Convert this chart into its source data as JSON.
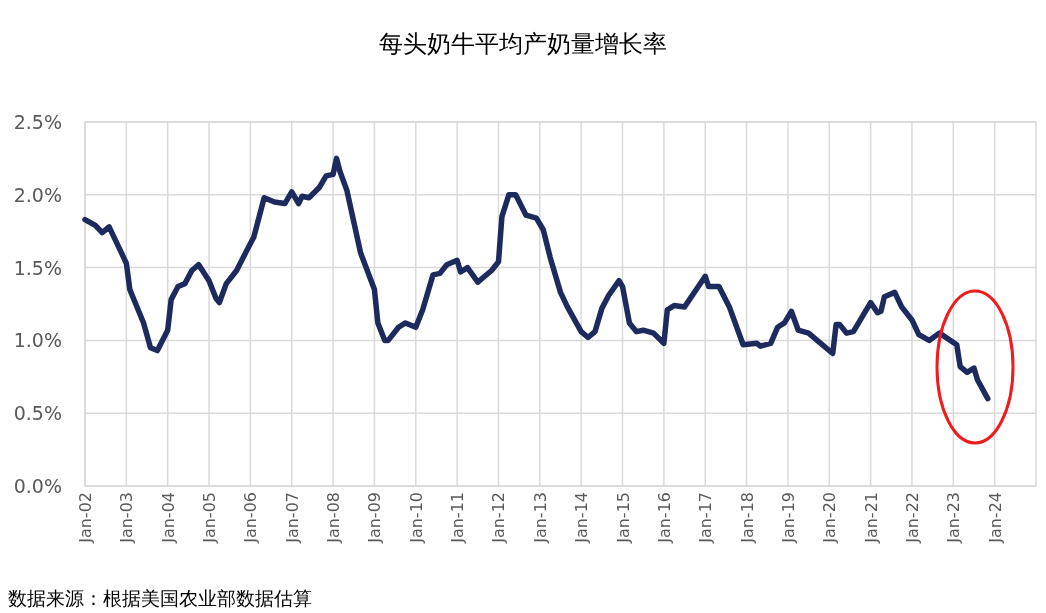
{
  "chart_data": {
    "type": "line",
    "title": "每头奶牛平均产奶量增长率",
    "annotations": [
      "数据来源：根据美国农业部数据估算"
    ],
    "x": [
      "2002-01",
      "2002-04",
      "2002-06",
      "2002-08",
      "2002-10",
      "2003-01",
      "2003-02",
      "2003-06",
      "2003-08",
      "2003-10",
      "2004-01",
      "2004-02",
      "2004-04",
      "2004-06",
      "2004-08",
      "2004-10",
      "2005-01",
      "2005-03",
      "2005-04",
      "2005-06",
      "2005-09",
      "2005-12",
      "2006-02",
      "2006-05",
      "2006-08",
      "2006-11",
      "2007-01",
      "2007-03",
      "2007-04",
      "2007-06",
      "2007-09",
      "2007-11",
      "2008-01",
      "2008-02",
      "2008-03",
      "2008-05",
      "2008-09",
      "2009-01",
      "2009-02",
      "2009-04",
      "2009-05",
      "2009-08",
      "2009-10",
      "2010-01",
      "2010-03",
      "2010-06",
      "2010-08",
      "2010-10",
      "2011-01",
      "2011-02",
      "2011-04",
      "2011-07",
      "2011-11",
      "2012-01",
      "2012-02",
      "2012-04",
      "2012-06",
      "2012-09",
      "2012-12",
      "2013-02",
      "2013-04",
      "2013-07",
      "2013-09",
      "2014-01",
      "2014-03",
      "2014-05",
      "2014-07",
      "2014-09",
      "2014-12",
      "2015-01",
      "2015-03",
      "2015-05",
      "2015-07",
      "2015-10",
      "2016-01",
      "2016-02",
      "2016-04",
      "2016-07",
      "2016-11",
      "2017-01",
      "2017-02",
      "2017-05",
      "2017-08",
      "2017-12",
      "2018-04",
      "2018-05",
      "2018-08",
      "2018-10",
      "2018-12",
      "2019-02",
      "2019-04",
      "2019-07",
      "2019-10",
      "2020-02",
      "2020-03",
      "2020-04",
      "2020-06",
      "2020-08",
      "2021-01",
      "2021-03",
      "2021-04",
      "2021-05",
      "2021-08",
      "2021-10",
      "2022-01",
      "2022-03",
      "2022-06",
      "2022-09",
      "2023-02",
      "2023-03",
      "2023-05",
      "2023-07",
      "2023-08",
      "2023-11"
    ],
    "series": [
      {
        "color": "#1d2a5e",
        "values": [
          1.83,
          1.79,
          1.74,
          1.78,
          1.68,
          1.53,
          1.35,
          1.12,
          0.95,
          0.93,
          1.07,
          1.28,
          1.37,
          1.39,
          1.48,
          1.52,
          1.41,
          1.29,
          1.26,
          1.39,
          1.48,
          1.62,
          1.71,
          1.98,
          1.95,
          1.94,
          2.02,
          1.94,
          1.99,
          1.98,
          2.05,
          2.13,
          2.14,
          2.25,
          2.16,
          2.03,
          1.6,
          1.35,
          1.12,
          1.0,
          1.0,
          1.09,
          1.12,
          1.09,
          1.21,
          1.45,
          1.46,
          1.52,
          1.55,
          1.47,
          1.5,
          1.4,
          1.48,
          1.54,
          1.85,
          2.0,
          2.0,
          1.86,
          1.84,
          1.76,
          1.57,
          1.33,
          1.23,
          1.06,
          1.02,
          1.06,
          1.22,
          1.31,
          1.41,
          1.37,
          1.12,
          1.06,
          1.07,
          1.05,
          0.98,
          1.21,
          1.24,
          1.23,
          1.37,
          1.44,
          1.37,
          1.37,
          1.23,
          0.97,
          0.98,
          0.96,
          0.98,
          1.09,
          1.12,
          1.2,
          1.07,
          1.05,
          0.99,
          0.91,
          1.11,
          1.11,
          1.05,
          1.06,
          1.26,
          1.19,
          1.2,
          1.3,
          1.33,
          1.23,
          1.14,
          1.04,
          1.0,
          1.05,
          0.97,
          0.82,
          0.78,
          0.81,
          0.73,
          0.6
        ]
      }
    ],
    "xlim": [
      "2002-01",
      "2025-01"
    ],
    "xticks": [
      {
        "value": "2002-01",
        "label": "Jan-02"
      },
      {
        "value": "2003-01",
        "label": "Jan-03"
      },
      {
        "value": "2004-01",
        "label": "Jan-04"
      },
      {
        "value": "2005-01",
        "label": "Jan-05"
      },
      {
        "value": "2006-01",
        "label": "Jan-06"
      },
      {
        "value": "2007-01",
        "label": "Jan-07"
      },
      {
        "value": "2008-01",
        "label": "Jan-08"
      },
      {
        "value": "2009-01",
        "label": "Jan-09"
      },
      {
        "value": "2010-01",
        "label": "Jan-10"
      },
      {
        "value": "2011-01",
        "label": "Jan-11"
      },
      {
        "value": "2012-01",
        "label": "Jan-12"
      },
      {
        "value": "2013-01",
        "label": "Jan-13"
      },
      {
        "value": "2014-01",
        "label": "Jan-14"
      },
      {
        "value": "2015-01",
        "label": "Jan-15"
      },
      {
        "value": "2016-01",
        "label": "Jan-16"
      },
      {
        "value": "2017-01",
        "label": "Jan-17"
      },
      {
        "value": "2018-01",
        "label": "Jan-18"
      },
      {
        "value": "2019-01",
        "label": "Jan-19"
      },
      {
        "value": "2020-01",
        "label": "Jan-20"
      },
      {
        "value": "2021-01",
        "label": "Jan-21"
      },
      {
        "value": "2022-01",
        "label": "Jan-22"
      },
      {
        "value": "2023-01",
        "label": "Jan-23"
      },
      {
        "value": "2024-01",
        "label": "Jan-24"
      }
    ],
    "ylim": [
      0,
      2.5
    ],
    "yticks": [
      {
        "value": 0,
        "label": "0.0%"
      },
      {
        "value": 0.5,
        "label": "0.5%"
      },
      {
        "value": 1,
        "label": "1.0%"
      },
      {
        "value": 1.5,
        "label": "1.5%"
      },
      {
        "value": 2,
        "label": "2.0%"
      },
      {
        "value": 2.5,
        "label": "2.5%"
      }
    ],
    "grid": true,
    "line_style": "solid"
  }
}
